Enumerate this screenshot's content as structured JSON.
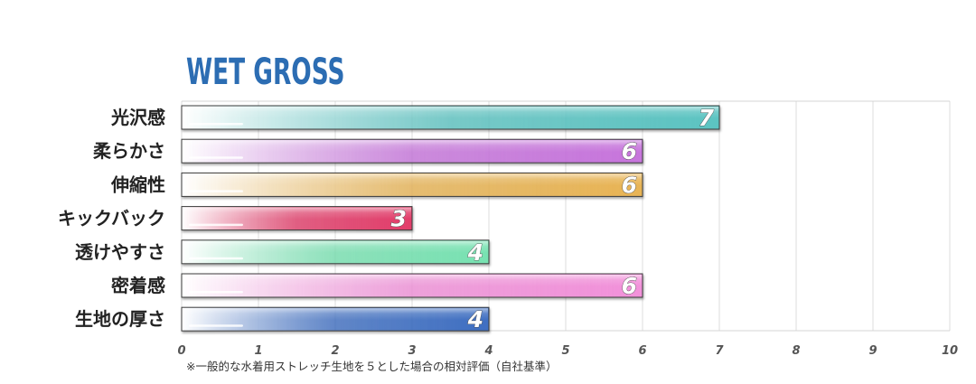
{
  "chart_data": {
    "type": "bar",
    "orientation": "horizontal",
    "title": "WET GROSS",
    "footnote": "※一般的な水着用ストレッチ生地を５とした場合の相対評価（自社基準）",
    "categories": [
      "光沢感",
      "柔らかさ",
      "伸縮性",
      "キックバック",
      "透けやすさ",
      "密着感",
      "生地の厚さ"
    ],
    "values": [
      7,
      6,
      6,
      3,
      4,
      6,
      4
    ],
    "data_labels": [
      "7",
      "6",
      "6",
      "3",
      "4",
      "6",
      "4"
    ],
    "colors": [
      "#5cc4c2",
      "#c775dc",
      "#e8b455",
      "#e23d6a",
      "#78e2b2",
      "#f291da",
      "#3f6fc2"
    ],
    "xlim": [
      0,
      10
    ],
    "xticks": [
      "0",
      "1",
      "2",
      "3",
      "4",
      "5",
      "6",
      "7",
      "8",
      "9",
      "10"
    ],
    "grid": true,
    "legend": "none"
  }
}
